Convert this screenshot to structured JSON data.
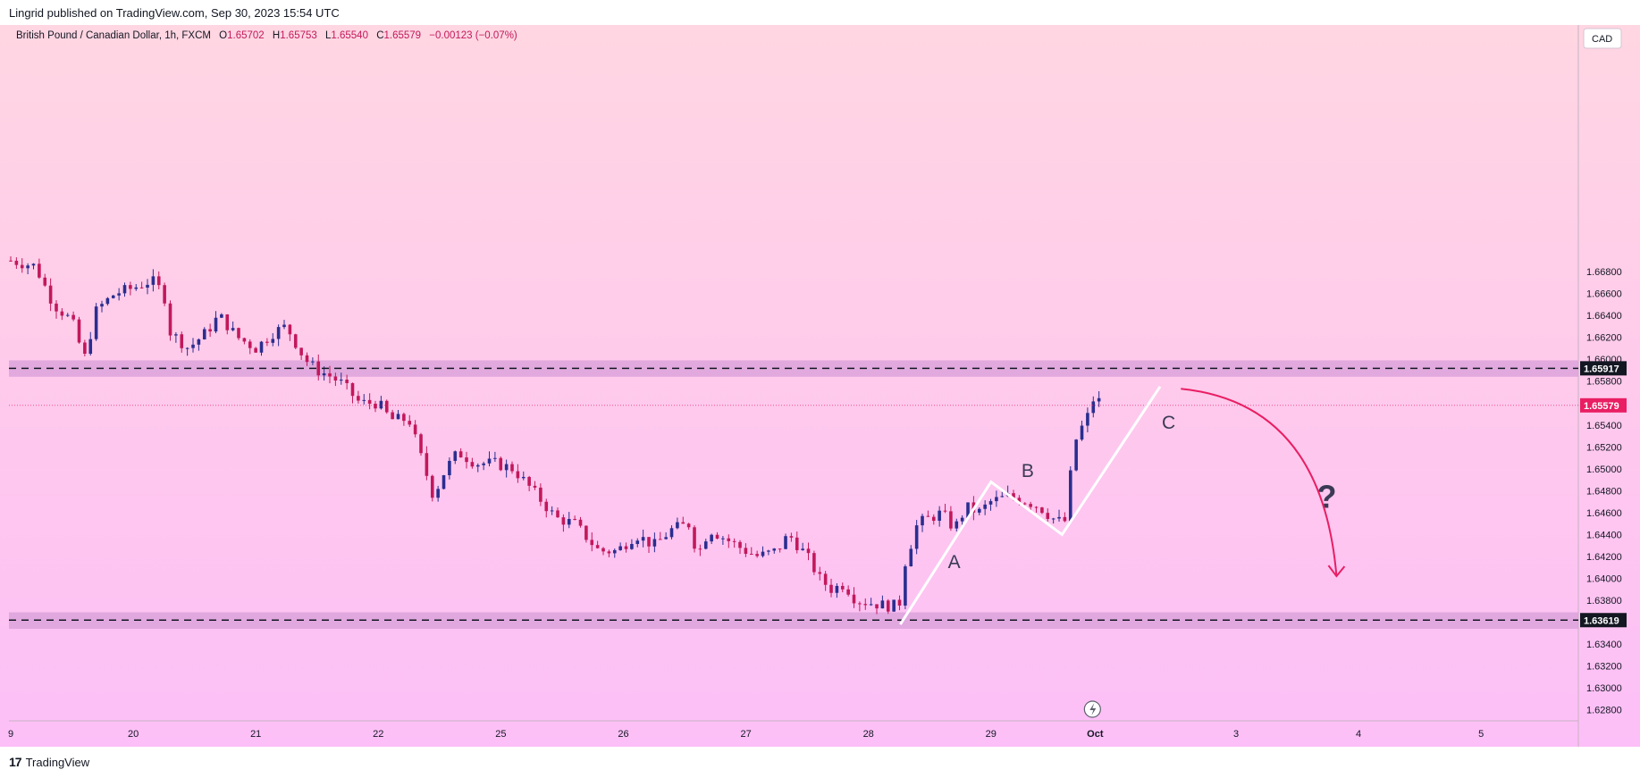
{
  "header": {
    "publisher_line": "Lingrid published on TradingView.com, Sep 30, 2023 15:54 UTC"
  },
  "legend": {
    "symbol": "British Pound / Canadian Dollar, 1h, FXCM",
    "open_label": "O",
    "open": "1.65702",
    "high_label": "H",
    "high": "1.65753",
    "low_label": "L",
    "low": "1.65540",
    "close_label": "C",
    "close": "1.65579",
    "change": "−0.00123 (−0.07%)"
  },
  "currency": "CAD",
  "footer": {
    "brand": "TradingView",
    "logo_glyph": "17"
  },
  "colors": {
    "up": "#2a2e8f",
    "down": "#c2185b",
    "zone": "#d9a0d9",
    "price_tag": "#e91e63",
    "level_tag": "#131722",
    "arrow": "#e91e63",
    "wave": "#ffffff"
  },
  "chart_data": {
    "type": "candlestick",
    "title": "British Pound / Canadian Dollar, 1h, FXCM",
    "ylim": [
      1.627,
      1.6905
    ],
    "y_ticks": [
      1.668,
      1.666,
      1.664,
      1.662,
      1.66,
      1.658,
      1.6565,
      1.654,
      1.652,
      1.65,
      1.648,
      1.646,
      1.644,
      1.642,
      1.64,
      1.638,
      1.634,
      1.632,
      1.63,
      1.628
    ],
    "y_tick_labels": [
      "1.66800",
      "1.66600",
      "1.66400",
      "1.66200",
      "1.66000",
      "1.65800",
      "",
      "1.65400",
      "1.65200",
      "1.65000",
      "1.64800",
      "1.64600",
      "1.64400",
      "1.64200",
      "1.64000",
      "1.63800",
      "1.63400",
      "1.63200",
      "1.63000",
      "1.62800"
    ],
    "x_ticks": [
      {
        "label": "9",
        "x": 0
      },
      {
        "label": "20",
        "x": 1
      },
      {
        "label": "21",
        "x": 2
      },
      {
        "label": "22",
        "x": 3
      },
      {
        "label": "25",
        "x": 4
      },
      {
        "label": "26",
        "x": 5
      },
      {
        "label": "27",
        "x": 6
      },
      {
        "label": "28",
        "x": 7
      },
      {
        "label": "29",
        "x": 8
      },
      {
        "label": "Oct",
        "x": 8.85,
        "bold": true
      },
      {
        "label": "3",
        "x": 10
      },
      {
        "label": "4",
        "x": 11
      },
      {
        "label": "5",
        "x": 12
      }
    ],
    "x_range": [
      0,
      12.85
    ],
    "close_path": [
      [
        0.0,
        1.669
      ],
      [
        0.2,
        1.6685
      ],
      [
        0.35,
        1.665
      ],
      [
        0.5,
        1.6635
      ],
      [
        0.6,
        1.66
      ],
      [
        0.7,
        1.6645
      ],
      [
        0.85,
        1.666
      ],
      [
        1.0,
        1.6665
      ],
      [
        1.15,
        1.6672
      ],
      [
        1.25,
        1.666
      ],
      [
        1.3,
        1.6625
      ],
      [
        1.45,
        1.661
      ],
      [
        1.6,
        1.6625
      ],
      [
        1.7,
        1.664
      ],
      [
        1.85,
        1.662
      ],
      [
        2.0,
        1.661
      ],
      [
        2.15,
        1.6625
      ],
      [
        2.25,
        1.663
      ],
      [
        2.4,
        1.66
      ],
      [
        2.5,
        1.659
      ],
      [
        2.6,
        1.6585
      ],
      [
        2.7,
        1.6578
      ],
      [
        2.85,
        1.656
      ],
      [
        3.0,
        1.656
      ],
      [
        3.1,
        1.6545
      ],
      [
        3.25,
        1.6545
      ],
      [
        3.35,
        1.651
      ],
      [
        3.45,
        1.6475
      ],
      [
        3.55,
        1.65
      ],
      [
        3.65,
        1.6515
      ],
      [
        3.8,
        1.6505
      ],
      [
        3.95,
        1.6505
      ],
      [
        4.1,
        1.65
      ],
      [
        4.3,
        1.6475
      ],
      [
        4.45,
        1.6455
      ],
      [
        4.6,
        1.645
      ],
      [
        4.8,
        1.6425
      ],
      [
        4.95,
        1.6425
      ],
      [
        5.1,
        1.644
      ],
      [
        5.25,
        1.643
      ],
      [
        5.4,
        1.6445
      ],
      [
        5.55,
        1.645
      ],
      [
        5.6,
        1.642
      ],
      [
        5.7,
        1.6445
      ],
      [
        5.85,
        1.6435
      ],
      [
        6.0,
        1.6425
      ],
      [
        6.1,
        1.642
      ],
      [
        6.25,
        1.6425
      ],
      [
        6.35,
        1.644
      ],
      [
        6.5,
        1.642
      ],
      [
        6.6,
        1.64
      ],
      [
        6.7,
        1.639
      ],
      [
        6.8,
        1.6395
      ],
      [
        6.9,
        1.638
      ],
      [
        7.0,
        1.6378
      ],
      [
        7.15,
        1.6375
      ],
      [
        7.25,
        1.6375
      ],
      [
        7.3,
        1.6415
      ],
      [
        7.4,
        1.645
      ],
      [
        7.5,
        1.6455
      ],
      [
        7.6,
        1.646
      ],
      [
        7.7,
        1.6445
      ],
      [
        7.8,
        1.6465
      ],
      [
        7.9,
        1.646
      ],
      [
        8.0,
        1.647
      ],
      [
        8.15,
        1.6475
      ],
      [
        8.3,
        1.647
      ],
      [
        8.4,
        1.6465
      ],
      [
        8.5,
        1.6455
      ],
      [
        8.6,
        1.645
      ],
      [
        8.65,
        1.6495
      ],
      [
        8.7,
        1.653
      ],
      [
        8.78,
        1.6545
      ],
      [
        8.85,
        1.6568
      ],
      [
        8.9,
        1.6558
      ]
    ],
    "levels": [
      {
        "value": 1.65917,
        "label": "1.65917",
        "zone": [
          1.6584,
          1.6599
        ]
      },
      {
        "value": 1.63619,
        "label": "1.63619",
        "zone": [
          1.6354,
          1.6369
        ]
      }
    ],
    "last_price": {
      "value": 1.65579,
      "label": "1.65579"
    },
    "waves": {
      "points": [
        [
          7.26,
          1.6358
        ],
        [
          8.0,
          1.6488
        ],
        [
          8.58,
          1.644
        ],
        [
          9.38,
          1.6575
        ]
      ],
      "labels": [
        {
          "text": "A",
          "x": 7.7,
          "y": 1.6414
        },
        {
          "text": "B",
          "x": 8.3,
          "y": 1.6497
        },
        {
          "text": "C",
          "x": 9.45,
          "y": 1.6541
        },
        {
          "text": "?",
          "x": 10.74,
          "y": 1.6472
        }
      ]
    },
    "projection_arrow": {
      "from": [
        9.55,
        1.6573
      ],
      "control": [
        10.7,
        1.656
      ],
      "to": [
        10.82,
        1.6402
      ]
    },
    "flash_marker_x": 8.85
  }
}
